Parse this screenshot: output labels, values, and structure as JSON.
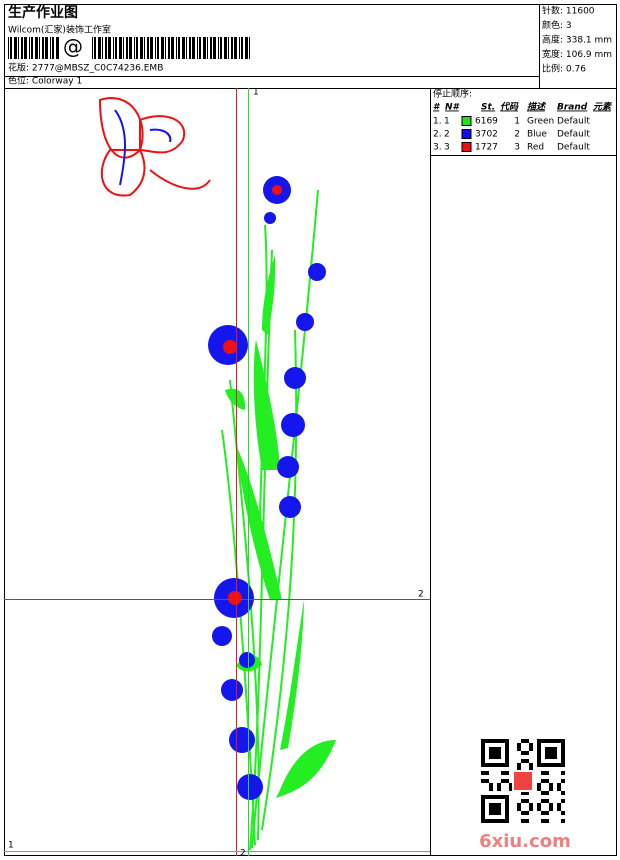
{
  "header": {
    "title": "生产作业图",
    "studio": "Wilcom(汇家)装饰工作室",
    "barcode_text": "@",
    "design": "花版: 2777@MBSZ_C0C74236.EMB",
    "colorway": "色位: Colorway 1"
  },
  "info": [
    "针数: 11600",
    "颜色: 3",
    "高度: 338.1 mm",
    "宽度: 106.9 mm",
    "比例: 0.76"
  ],
  "stop_sequence": {
    "title": "停止顺序:",
    "columns": [
      "#",
      "N#",
      "St.",
      "代码",
      "描述",
      "Brand",
      "元素"
    ],
    "rows": [
      [
        "1.",
        "1",
        "6169",
        "1",
        "Green",
        "Default"
      ],
      [
        "2.",
        "2",
        "3702",
        "2",
        "Blue",
        "Default"
      ],
      [
        "3.",
        "3",
        "1727",
        "3",
        "Red",
        "Default"
      ]
    ],
    "swatches": [
      "#22dd22",
      "#1010ee",
      "#ee1111"
    ]
  },
  "markers": [
    "1",
    "2",
    "2",
    "1"
  ],
  "watermark": "6xiu.com"
}
